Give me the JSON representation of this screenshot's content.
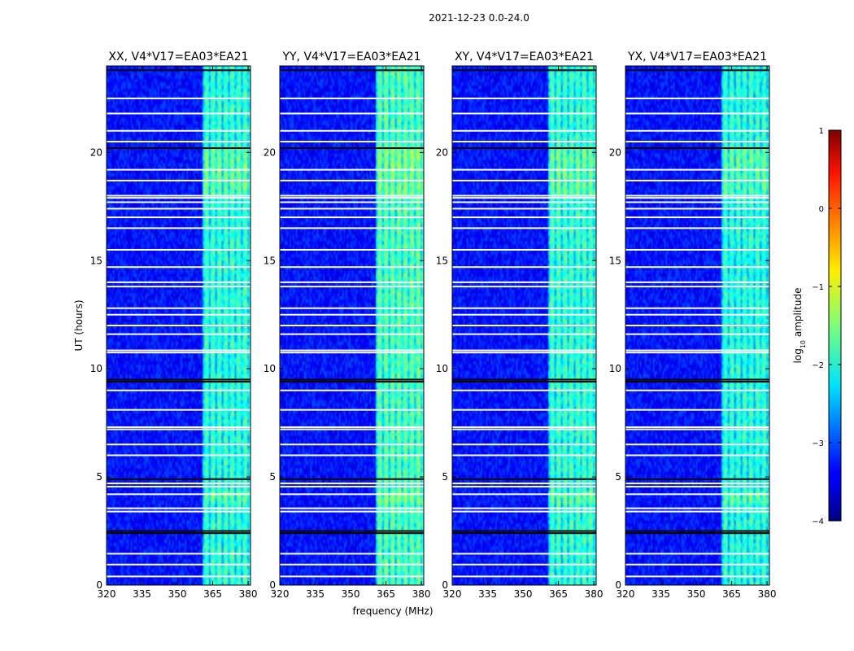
{
  "suptitle": "2021-12-23 0.0-24.0",
  "chart_data": {
    "type": "heatmap",
    "xlabel": "frequency (MHz)",
    "ylabel": "UT (hours)",
    "xlim": [
      320,
      381
    ],
    "ylim": [
      0,
      24
    ],
    "xticks": [
      320,
      335,
      350,
      365,
      380
    ],
    "yticks": [
      0,
      5,
      10,
      15,
      20
    ],
    "panels": [
      {
        "title": "XX, V4*V17=EA03*EA21",
        "band_level": 0.78,
        "burst_level": 0.92
      },
      {
        "title": "YY, V4*V17=EA03*EA21",
        "band_level": 0.88,
        "burst_level": 1.0
      },
      {
        "title": "XY, V4*V17=EA03*EA21",
        "band_level": 0.8,
        "burst_level": 0.94
      },
      {
        "title": "YX, V4*V17=EA03*EA21",
        "band_level": 0.76,
        "burst_level": 0.9
      }
    ],
    "background_log10_amplitude": -3.3,
    "rfi_band_mhz": [
      361,
      381
    ],
    "rfi_burst_hours": [
      [
        18.0,
        20.3
      ],
      [
        3.8,
        4.4
      ]
    ],
    "flagged_rows_white_hours": [
      0.4,
      0.95,
      1.45,
      3.4,
      3.55,
      4.2,
      4.55,
      4.7,
      6.0,
      6.5,
      7.2,
      7.3,
      8.1,
      9.0,
      10.75,
      10.85,
      11.6,
      12.0,
      12.5,
      12.8,
      13.8,
      14.0,
      14.7,
      15.5,
      16.5,
      17.0,
      17.4,
      17.7,
      17.9,
      18.0,
      18.7,
      19.2,
      20.5,
      21.0,
      21.8,
      22.5
    ],
    "flagged_rows_black_hours": [
      2.4,
      2.5,
      4.9,
      9.4,
      9.5,
      20.2,
      23.8
    ],
    "colorbar": {
      "label": "log10 amplitude",
      "range": [
        -4,
        1
      ],
      "ticks": [
        1,
        0,
        -1,
        -2,
        -3,
        -4
      ],
      "tick_labels": [
        "1",
        "0",
        "−1",
        "−2",
        "−3",
        "−4"
      ],
      "colormap": "jet"
    }
  }
}
